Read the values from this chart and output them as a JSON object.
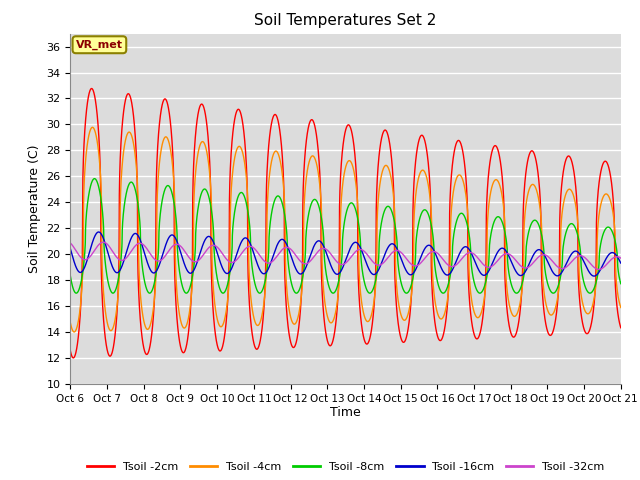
{
  "title": "Soil Temperatures Set 2",
  "xlabel": "Time",
  "ylabel": "Soil Temperature (C)",
  "ylim": [
    10,
    37
  ],
  "yticks": [
    10,
    12,
    14,
    16,
    18,
    20,
    22,
    24,
    26,
    28,
    30,
    32,
    34,
    36
  ],
  "fig_bg_color": "#ffffff",
  "plot_bg_color": "#dcdcdc",
  "annotation_text": "VR_met",
  "annotation_bg": "#ffff99",
  "annotation_border": "#8B8000",
  "series_colors": {
    "Tsoil -2cm": "#ff0000",
    "Tsoil -4cm": "#ff8c00",
    "Tsoil -8cm": "#00cc00",
    "Tsoil -16cm": "#0000cc",
    "Tsoil -32cm": "#cc44cc"
  },
  "x_tick_labels": [
    "Oct 6",
    "Oct 7",
    "Oct 8",
    "Oct 9",
    "Oct 10",
    "Oct 11",
    "Oct 12",
    "Oct 13",
    "Oct 14",
    "Oct 15",
    "Oct 16",
    "Oct 17",
    "Oct 18",
    "Oct 19",
    "Oct 20",
    "Oct 21"
  ],
  "n_days": 15,
  "n_points_per_day": 288
}
